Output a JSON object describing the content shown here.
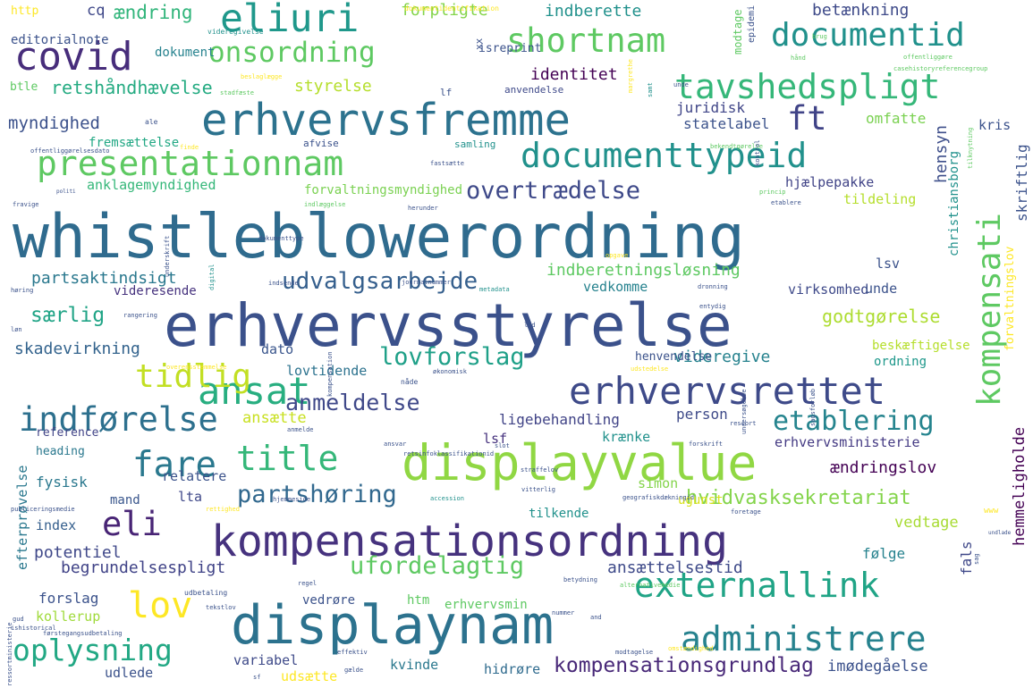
{
  "words": [
    {
      "text": "whistleblowerordning",
      "color": "#2f6b8e"
    },
    {
      "text": "erhvervsstyrelse",
      "color": "#3b518b"
    },
    {
      "text": "displayvalue",
      "color": "#90d743"
    },
    {
      "text": "kompensationsordning",
      "color": "#46327e"
    },
    {
      "text": "displaynam",
      "color": "#2c728e"
    },
    {
      "text": "erhvervsfremme",
      "color": "#2c728e"
    },
    {
      "text": "erhvervsrettet",
      "color": "#3e4a89"
    },
    {
      "text": "presentationnam",
      "color": "#5ec962"
    },
    {
      "text": "documenttypeid",
      "color": "#21918c"
    },
    {
      "text": "tavshedspligt",
      "color": "#35b779"
    },
    {
      "text": "documentid",
      "color": "#21918c"
    },
    {
      "text": "shortnam",
      "color": "#5ec962"
    },
    {
      "text": "eliuri",
      "color": "#1f988b"
    },
    {
      "text": "covid",
      "color": "#472d7b"
    },
    {
      "text": "onsordning",
      "color": "#5ec962"
    },
    {
      "text": "ansat",
      "color": "#28ae80"
    },
    {
      "text": "title",
      "color": "#35b779"
    },
    {
      "text": "fare",
      "color": "#2a788e"
    },
    {
      "text": "eli",
      "color": "#482475"
    },
    {
      "text": "lov",
      "color": "#fde725"
    },
    {
      "text": "tidlig",
      "color": "#c2df23"
    },
    {
      "text": "indførelse",
      "color": "#2d708e"
    },
    {
      "text": "externallink",
      "color": "#20a486"
    },
    {
      "text": "administrere",
      "color": "#26828e"
    },
    {
      "text": "oplysning",
      "color": "#22a884"
    },
    {
      "text": "kompensati",
      "color": "#5ec962"
    },
    {
      "text": "etablering",
      "color": "#25848e"
    },
    {
      "text": "ft",
      "color": "#404387"
    },
    {
      "text": "overtrædelse",
      "color": "#3e4989"
    },
    {
      "text": "lovforslag",
      "color": "#1fa088"
    },
    {
      "text": "udvalgsarbejde",
      "color": "#355f8d"
    },
    {
      "text": "partshøring",
      "color": "#31688e"
    },
    {
      "text": "ufordelagtig",
      "color": "#5ec962"
    },
    {
      "text": "anmeldelse",
      "color": "#3f4889"
    },
    {
      "text": "kompensationsgrundlag",
      "color": "#482878"
    },
    {
      "text": "hvidvasksekretariat",
      "color": "#84d44b"
    },
    {
      "text": "retshåndhævelse",
      "color": "#25ab82"
    },
    {
      "text": "partsaktindsigt",
      "color": "#2a788e"
    },
    {
      "text": "indberetningsløsning",
      "color": "#5ec962"
    },
    {
      "text": "særlig",
      "color": "#20a486"
    },
    {
      "text": "skadevirkning",
      "color": "#33638d"
    },
    {
      "text": "godtgørelse",
      "color": "#addc30"
    },
    {
      "text": "videregive",
      "color": "#26828e"
    },
    {
      "text": "myndighed",
      "color": "#3b518b"
    },
    {
      "text": "identitet",
      "color": "#440154"
    },
    {
      "text": "styrelse",
      "color": "#b5de2b"
    },
    {
      "text": "forpligte",
      "color": "#84d44b"
    },
    {
      "text": "indberette",
      "color": "#21918c"
    },
    {
      "text": "betænkning",
      "color": "#3e4a89"
    },
    {
      "text": "cq",
      "color": "#3f4889"
    },
    {
      "text": "ændring",
      "color": "#31b57b"
    },
    {
      "text": "hensyn",
      "color": "#3d4e8a"
    },
    {
      "text": "juridisk",
      "color": "#404688"
    },
    {
      "text": "statelabel",
      "color": "#3b528b"
    },
    {
      "text": "omfatte",
      "color": "#7ad151"
    },
    {
      "text": "kris",
      "color": "#3b528b"
    },
    {
      "text": "hjælpepakke",
      "color": "#414487"
    },
    {
      "text": "tildeling",
      "color": "#b5de2b"
    },
    {
      "text": "virksomhed",
      "color": "#3e4989"
    },
    {
      "text": "vedkomme",
      "color": "#26828e"
    },
    {
      "text": "unde",
      "color": "#3b528b"
    },
    {
      "text": "lsv",
      "color": "#3b528b"
    },
    {
      "text": "dato",
      "color": "#39558c"
    },
    {
      "text": "lovtidende",
      "color": "#2c728e"
    },
    {
      "text": "ligebehandling",
      "color": "#414487"
    },
    {
      "text": "krænke",
      "color": "#21918c"
    },
    {
      "text": "person",
      "color": "#3e4a89"
    },
    {
      "text": "ansætte",
      "color": "#c8e020"
    },
    {
      "text": "simon",
      "color": "#84d44b"
    },
    {
      "text": "lsf",
      "color": "#46327e"
    },
    {
      "text": "relatere",
      "color": "#3b528b"
    },
    {
      "text": "erhvervsministerie",
      "color": "#443a83"
    },
    {
      "text": "ændringslov",
      "color": "#440154"
    },
    {
      "text": "fysisk",
      "color": "#2a788e"
    },
    {
      "text": "mand",
      "color": "#39568c"
    },
    {
      "text": "lta",
      "color": "#3f4889"
    },
    {
      "text": "ugunst",
      "color": "#d8e219"
    },
    {
      "text": "vedtage",
      "color": "#a8db34"
    },
    {
      "text": "følge",
      "color": "#26828e"
    },
    {
      "text": "ansættelsestid",
      "color": "#3e4a89"
    },
    {
      "text": "begrundelsespligt",
      "color": "#404387"
    },
    {
      "text": "potentiel",
      "color": "#3f4889"
    },
    {
      "text": "efterprøvelse",
      "color": "#2a788e"
    },
    {
      "text": "index",
      "color": "#355f8d"
    },
    {
      "text": "forslag",
      "color": "#3b528b"
    },
    {
      "text": "kollerup",
      "color": "#9fda3a"
    },
    {
      "text": "vedrøre",
      "color": "#3b528b"
    },
    {
      "text": "htm",
      "color": "#5ec962"
    },
    {
      "text": "erhvervsmin",
      "color": "#5ec962"
    },
    {
      "text": "tilkende",
      "color": "#21918c"
    },
    {
      "text": "variabel",
      "color": "#3e4a89"
    },
    {
      "text": "kvinde",
      "color": "#2a788e"
    },
    {
      "text": "hidrøre",
      "color": "#2f6b8e"
    },
    {
      "text": "udlede",
      "color": "#3b528b"
    },
    {
      "text": "udsætte",
      "color": "#fde725"
    },
    {
      "text": "imødegåelse",
      "color": "#3b518b"
    },
    {
      "text": "fals",
      "color": "#3f4889"
    },
    {
      "text": "hemmeligholde",
      "color": "#440154"
    },
    {
      "text": "anklagemyndighed",
      "color": "#35b779"
    },
    {
      "text": "forvaltningsmyndighed",
      "color": "#7ad151"
    },
    {
      "text": "videresende",
      "color": "#46327e"
    },
    {
      "text": "fremsættelse",
      "color": "#22a884"
    },
    {
      "text": "christiansborg",
      "color": "#21918c"
    },
    {
      "text": "skriftlig",
      "color": "#3b528b"
    },
    {
      "text": "forvaltningslov",
      "color": "#fde725"
    },
    {
      "text": "beskæftigelse",
      "color": "#b5de2b"
    },
    {
      "text": "ordning",
      "color": "#1f988b"
    },
    {
      "text": "henvendelse",
      "color": "#3b528b"
    },
    {
      "text": "heading",
      "color": "#2a788e"
    },
    {
      "text": "reference",
      "color": "#404387"
    },
    {
      "text": "editorialnote",
      "color": "#3b528b"
    },
    {
      "text": "dokument",
      "color": "#26828e"
    },
    {
      "text": "btle",
      "color": "#5ec962"
    },
    {
      "text": "http",
      "color": "#fde725"
    },
    {
      "text": "isreprint",
      "color": "#3b528b"
    },
    {
      "text": "lf",
      "color": "#3b528b"
    },
    {
      "text": "xx",
      "color": "#3b528b"
    },
    {
      "text": "modtage",
      "color": "#5ec962"
    },
    {
      "text": "epidemi",
      "color": "#3b528b"
    },
    {
      "text": "samling",
      "color": "#21918c"
    },
    {
      "text": "afvise",
      "color": "#3b528b"
    },
    {
      "text": "anvendelse",
      "color": "#3e4989"
    },
    {
      "text": "videregivelse",
      "color": "#21918c"
    },
    {
      "text": "dokumentidentifikation",
      "color": "#fde725"
    },
    {
      "text": "brug",
      "color": "#5ec962"
    },
    {
      "text": "hånd",
      "color": "#5ec962"
    },
    {
      "text": "offentliggøre",
      "color": "#5ec962"
    },
    {
      "text": "casehistoryreferencegroup",
      "color": "#5ec962"
    },
    {
      "text": "stadfæste",
      "color": "#5ec962"
    },
    {
      "text": "beslaglægge",
      "color": "#fde725"
    },
    {
      "text": "margrethe",
      "color": "#fde725"
    },
    {
      "text": "unde",
      "color": "#3b528b"
    },
    {
      "text": "ale",
      "color": "#3b528b"
    },
    {
      "text": "finde",
      "color": "#fde725"
    },
    {
      "text": "bekendtgørelse",
      "color": "#5ec962"
    },
    {
      "text": "tilknytning",
      "color": "#5ec962"
    },
    {
      "text": "fastsætte",
      "color": "#3b528b"
    },
    {
      "text": "politi",
      "color": "#3b528b"
    },
    {
      "text": "fravige",
      "color": "#3b528b"
    },
    {
      "text": "indlæggelse",
      "color": "#5ec962"
    },
    {
      "text": "herunder",
      "color": "#3b528b"
    },
    {
      "text": "princip",
      "color": "#5ec962"
    },
    {
      "text": "etablere",
      "color": "#3b528b"
    },
    {
      "text": "dokumenttype",
      "color": "#3b528b"
    },
    {
      "text": "digital",
      "color": "#21918c"
    },
    {
      "text": "indsende",
      "color": "#3b528b"
    },
    {
      "text": "journalnummer",
      "color": "#3b528b"
    },
    {
      "text": "metadata",
      "color": "#21918c"
    },
    {
      "text": "dronning",
      "color": "#3b528b"
    },
    {
      "text": "høring",
      "color": "#3b528b"
    },
    {
      "text": "rangering",
      "color": "#3b528b"
    },
    {
      "text": "entydig",
      "color": "#3b528b"
    },
    {
      "text": "led",
      "color": "#3b528b"
    },
    {
      "text": "løn",
      "color": "#3b528b"
    },
    {
      "text": "overensstemmelse",
      "color": "#fde725"
    },
    {
      "text": "kompensation",
      "color": "#3b528b"
    },
    {
      "text": "økonomisk",
      "color": "#3b528b"
    },
    {
      "text": "udstedelse",
      "color": "#fde725"
    },
    {
      "text": "nåde",
      "color": "#3b528b"
    },
    {
      "text": "undersøgelse",
      "color": "#3b528b"
    },
    {
      "text": "sagsforløb",
      "color": "#3b528b"
    },
    {
      "text": "ressort",
      "color": "#3b528b"
    },
    {
      "text": "ressortministerie",
      "color": "#3b528b"
    },
    {
      "text": "anmelde",
      "color": "#3b528b"
    },
    {
      "text": "ansvar",
      "color": "#3b528b"
    },
    {
      "text": "retsinfoklassifikationid",
      "color": "#3b528b"
    },
    {
      "text": "slot",
      "color": "#3b528b"
    },
    {
      "text": "forskrift",
      "color": "#3b528b"
    },
    {
      "text": "straffelov",
      "color": "#3b528b"
    },
    {
      "text": "rettighed",
      "color": "#fde725"
    },
    {
      "text": "hjemmeside",
      "color": "#3b528b"
    },
    {
      "text": "vitterlig",
      "color": "#3b528b"
    },
    {
      "text": "accession",
      "color": "#21918c"
    },
    {
      "text": "geografiskdækningid",
      "color": "#3b528b"
    },
    {
      "text": "foretage",
      "color": "#3b528b"
    },
    {
      "text": "publiceringsmedie",
      "color": "#3b528b"
    },
    {
      "text": "udbetaling",
      "color": "#3b528b"
    },
    {
      "text": "betydning",
      "color": "#3b528b"
    },
    {
      "text": "alternativemedie",
      "color": "#5ec962"
    },
    {
      "text": "regel",
      "color": "#3b528b"
    },
    {
      "text": "tekstlov",
      "color": "#3b528b"
    },
    {
      "text": "nummer",
      "color": "#3b528b"
    },
    {
      "text": "and",
      "color": "#3b528b"
    },
    {
      "text": "sag",
      "color": "#3b528b"
    },
    {
      "text": "ishistorical",
      "color": "#3b528b"
    },
    {
      "text": "førstegangsudbetaling",
      "color": "#3b528b"
    },
    {
      "text": "gud",
      "color": "#3b528b"
    },
    {
      "text": "modtagelse",
      "color": "#3b528b"
    },
    {
      "text": "omstændighed",
      "color": "#fde725"
    },
    {
      "text": "effektiv",
      "color": "#3b528b"
    },
    {
      "text": "sf",
      "color": "#3b528b"
    },
    {
      "text": "gælde",
      "color": "#3b528b"
    },
    {
      "text": "kontrol",
      "color": "#3b528b"
    },
    {
      "text": "offentliggørelsesdato",
      "color": "#3b528b"
    },
    {
      "text": "underskrift",
      "color": "#3b528b"
    },
    {
      "text": "opgave",
      "color": "#fde725"
    },
    {
      "text": "samt",
      "color": "#21918c"
    },
    {
      "text": "www",
      "color": "#fde725"
    },
    {
      "text": "undlade",
      "color": "#3b528b"
    },
    {
      "text": "fr",
      "color": "#3b528b"
    },
    {
      "text": "ik",
      "color": "#3b528b"
    }
  ]
}
